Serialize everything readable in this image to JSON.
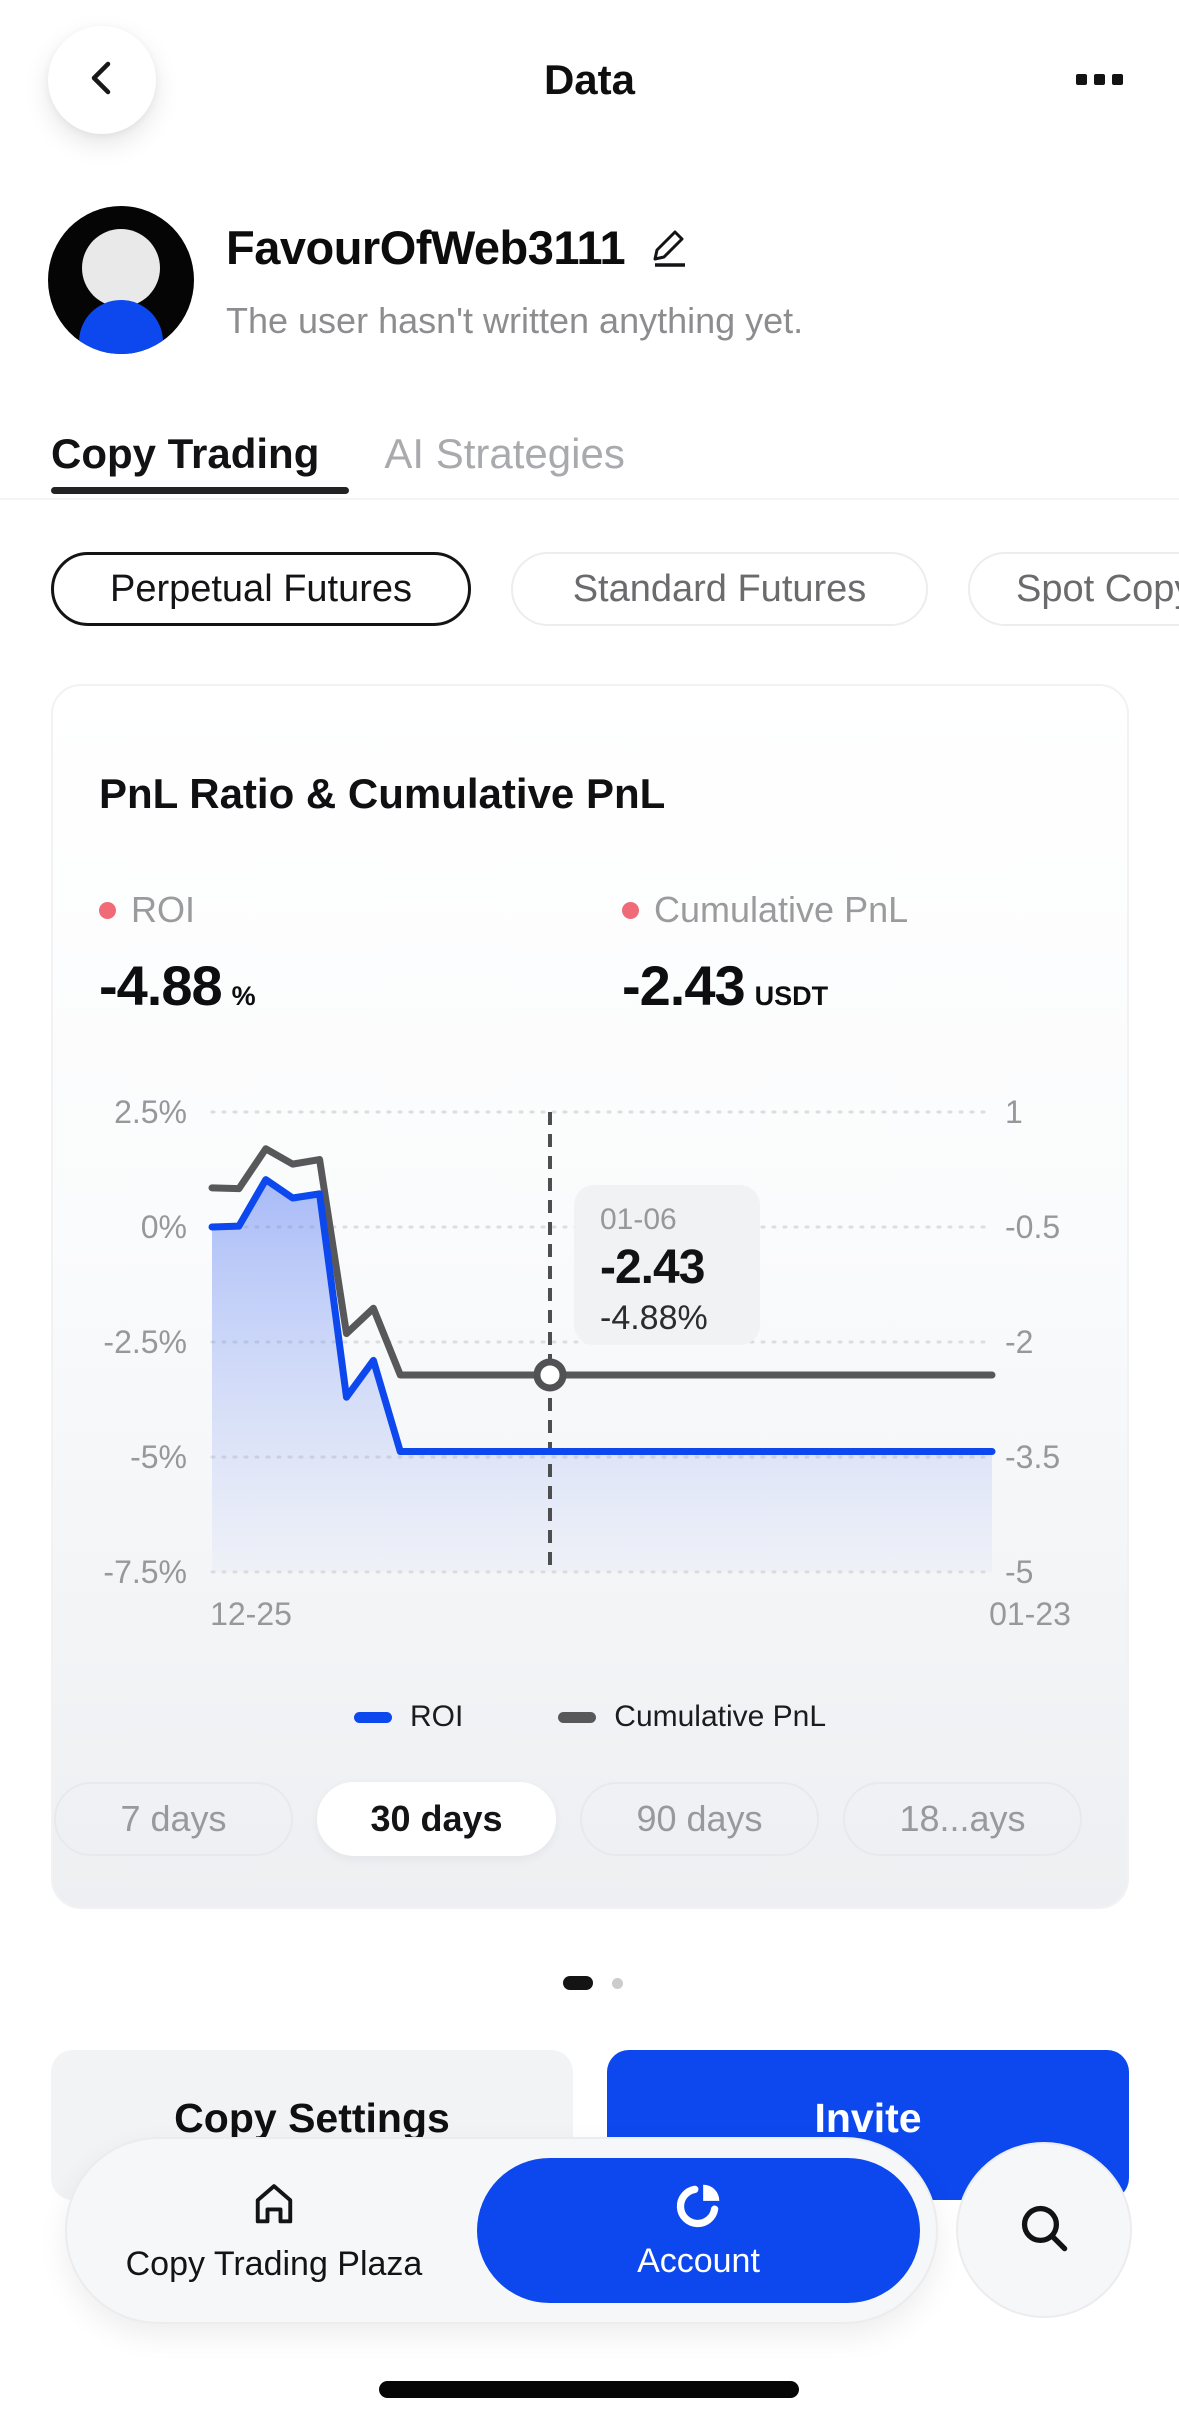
{
  "header": {
    "title": "Data"
  },
  "profile": {
    "name": "FavourOfWeb3111",
    "bio": "The user hasn't written anything yet."
  },
  "tabs": {
    "copy_trading": "Copy Trading",
    "ai_strategies": "AI Strategies"
  },
  "market_filters": {
    "perpetual": "Perpetual Futures",
    "standard": "Standard Futures",
    "spot": "Spot Copy"
  },
  "card": {
    "title": "PnL Ratio & Cumulative PnL",
    "stats": [
      {
        "label": "ROI",
        "value": "-4.88",
        "unit": "%"
      },
      {
        "label": "Cumulative PnL",
        "value": "-2.43",
        "unit": "USDT"
      }
    ],
    "ranges": {
      "r7": "7 days",
      "r30": "30 days",
      "r90": "90 days",
      "r180": "18...ays"
    }
  },
  "chart_data": {
    "type": "line",
    "title": "PnL Ratio & Cumulative PnL",
    "x_labels": [
      "12-25",
      "01-23"
    ],
    "left_axis": {
      "name": "ROI %",
      "ticks": [
        "2.5%",
        "0%",
        "-2.5%",
        "-5%",
        "-7.5%"
      ],
      "max": 2.5,
      "min": -7.5
    },
    "right_axis": {
      "name": "Cumulative PnL USDT",
      "ticks": [
        "1",
        "-0.5",
        "-2",
        "-3.5",
        "-5"
      ],
      "max": 1,
      "min": -5
    },
    "grid": "dotted-horizontal",
    "legend": [
      "ROI",
      "Cumulative PnL"
    ],
    "series": [
      {
        "name": "ROI",
        "axis": "left",
        "color": "#0C48EE",
        "values": [
          0,
          0.02,
          1.03,
          0.63,
          0.72,
          -3.7,
          -2.9,
          -4.88,
          -4.88,
          -4.88,
          -4.88,
          -4.88,
          -4.88,
          -4.88,
          -4.88,
          -4.88,
          -4.88,
          -4.88,
          -4.88,
          -4.88,
          -4.88,
          -4.88,
          -4.88,
          -4.88,
          -4.88,
          -4.88,
          -4.88,
          -4.88,
          -4.88,
          -4.88
        ]
      },
      {
        "name": "Cumulative PnL",
        "axis": "right",
        "color": "#58585A",
        "values": [
          0.01,
          0,
          0.52,
          0.32,
          0.38,
          -1.89,
          -1.56,
          -2.43,
          -2.43,
          -2.43,
          -2.43,
          -2.43,
          -2.43,
          -2.43,
          -2.43,
          -2.43,
          -2.43,
          -2.43,
          -2.43,
          -2.43,
          -2.43,
          -2.43,
          -2.43,
          -2.43,
          -2.43,
          -2.43,
          -2.43,
          -2.43,
          -2.43,
          -2.43
        ]
      }
    ],
    "cursor": {
      "index": 12,
      "date": "01-06",
      "cumulative_pnl": "-2.43",
      "roi": "-4.88%"
    }
  },
  "pagination": {
    "pages": 2,
    "active_page": 1
  },
  "actions": {
    "copy_settings": "Copy Settings",
    "invite": "Invite"
  },
  "bottom_nav": {
    "plaza": "Copy Trading Plaza",
    "account": "Account"
  },
  "colors": {
    "brand_blue": "#0C48EE",
    "stat_dot": "#F06A78",
    "pnl_line_gray": "#58585A"
  }
}
